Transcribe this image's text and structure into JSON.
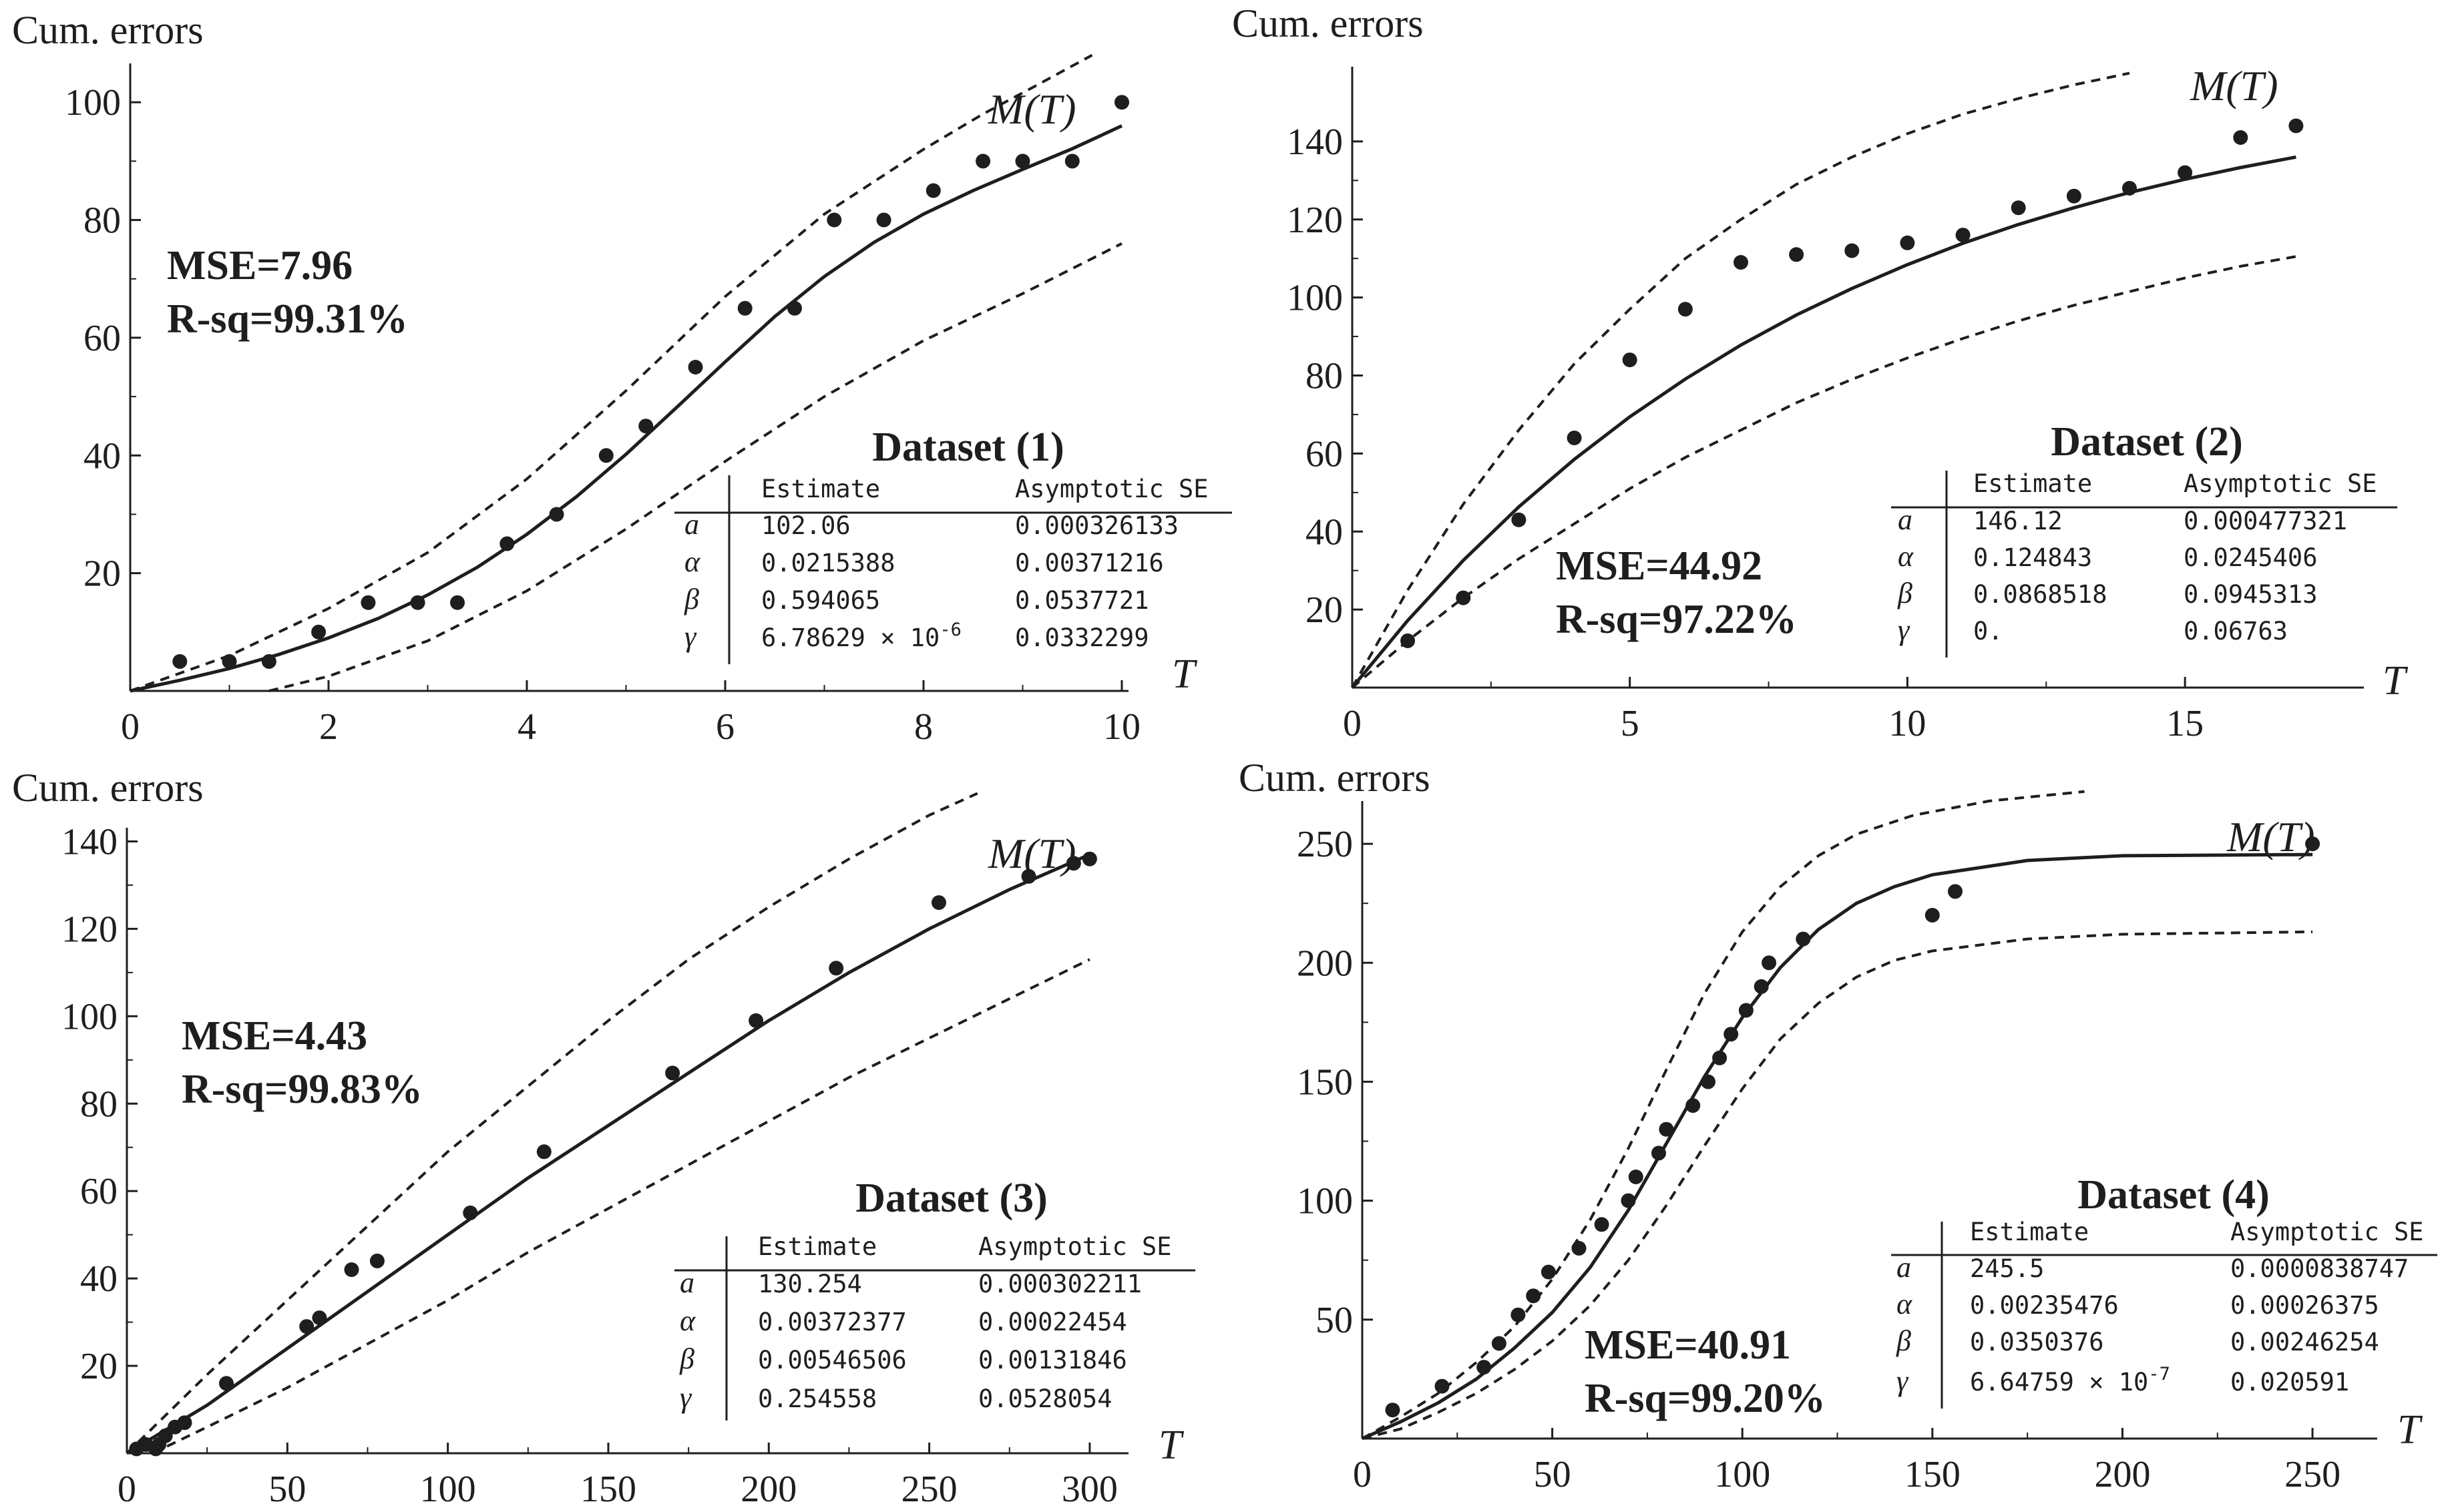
{
  "chart_data": [
    {
      "type": "scatter",
      "ylabel": "Cum. errors",
      "xlabel": "T",
      "curve_label": "M(T)",
      "xlim": [
        0,
        10
      ],
      "ylim": [
        0,
        110
      ],
      "xticks": [
        0,
        2,
        4,
        6,
        8,
        10
      ],
      "yticks": [
        20,
        40,
        60,
        80,
        100
      ],
      "stats": {
        "mse": "MSE=7.96",
        "rsq": "R-sq=99.31%"
      },
      "dataset_title": "Dataset (1)",
      "table": {
        "headers": [
          "Estimate",
          "Asymptotic SE"
        ],
        "rows": [
          {
            "param": "a",
            "estimate": "102.06",
            "se": "0.000326133"
          },
          {
            "param": "α",
            "estimate": "0.0215388",
            "se": "0.00371216"
          },
          {
            "param": "β",
            "estimate": "0.594065",
            "se": "0.0537721"
          },
          {
            "param": "γ",
            "estimate": "6.78629 × 10",
            "exp": "-6",
            "se": "0.0332299"
          }
        ]
      },
      "points": [
        [
          0.5,
          5
        ],
        [
          1.0,
          5
        ],
        [
          1.4,
          5
        ],
        [
          1.9,
          10
        ],
        [
          2.4,
          15
        ],
        [
          2.9,
          15
        ],
        [
          3.3,
          15
        ],
        [
          3.8,
          25
        ],
        [
          4.3,
          30
        ],
        [
          4.8,
          40
        ],
        [
          5.2,
          45
        ],
        [
          5.7,
          55
        ],
        [
          6.2,
          65
        ],
        [
          6.7,
          65
        ],
        [
          7.1,
          80
        ],
        [
          7.6,
          80
        ],
        [
          8.1,
          85
        ],
        [
          8.6,
          90
        ],
        [
          9.0,
          90
        ],
        [
          9.5,
          90
        ],
        [
          10.0,
          100
        ]
      ],
      "fit_curve": [
        [
          0,
          0
        ],
        [
          0.5,
          1.8
        ],
        [
          1,
          3.8
        ],
        [
          1.5,
          6.2
        ],
        [
          2,
          9.0
        ],
        [
          2.5,
          12.3
        ],
        [
          3,
          16.3
        ],
        [
          3.5,
          21.0
        ],
        [
          4,
          26.6
        ],
        [
          4.5,
          33.0
        ],
        [
          5,
          40.2
        ],
        [
          5.5,
          48.0
        ],
        [
          6,
          55.9
        ],
        [
          6.5,
          63.6
        ],
        [
          7,
          70.4
        ],
        [
          7.5,
          76.2
        ],
        [
          8,
          81.0
        ],
        [
          8.5,
          85.0
        ],
        [
          9,
          88.6
        ],
        [
          9.5,
          92.1
        ],
        [
          10,
          96.0
        ]
      ],
      "upper_band": [
        [
          0,
          0
        ],
        [
          1,
          6.0
        ],
        [
          2,
          14.0
        ],
        [
          3,
          23.5
        ],
        [
          4,
          36.0
        ],
        [
          5,
          51.0
        ],
        [
          6,
          67.0
        ],
        [
          7,
          81.0
        ],
        [
          8,
          92.0
        ],
        [
          8.6,
          98.0
        ],
        [
          9.1,
          102.5
        ],
        [
          9.7,
          108.0
        ]
      ],
      "lower_band": [
        [
          1.4,
          0
        ],
        [
          2,
          2.5
        ],
        [
          3,
          8.5
        ],
        [
          4,
          17.0
        ],
        [
          5,
          27.5
        ],
        [
          6,
          39.0
        ],
        [
          7,
          50.0
        ],
        [
          8,
          59.5
        ],
        [
          9,
          67.5
        ],
        [
          10,
          76.0
        ]
      ]
    },
    {
      "type": "scatter",
      "ylabel": "Cum. errors",
      "xlabel": "T",
      "curve_label": "M(T)",
      "xlim": [
        0,
        17.5
      ],
      "ylim": [
        0,
        160
      ],
      "xticks": [
        0,
        5,
        10,
        15
      ],
      "yticks": [
        20,
        40,
        60,
        80,
        100,
        120,
        140
      ],
      "stats": {
        "mse": "MSE=44.92",
        "rsq": "R-sq=97.22%"
      },
      "dataset_title": "Dataset (2)",
      "table": {
        "headers": [
          "Estimate",
          "Asymptotic SE"
        ],
        "rows": [
          {
            "param": "a",
            "estimate": "146.12",
            "se": "0.000477321"
          },
          {
            "param": "α",
            "estimate": "0.124843",
            "se": "0.0245406"
          },
          {
            "param": "β",
            "estimate": "0.0868518",
            "se": "0.0945313"
          },
          {
            "param": "γ",
            "estimate": "0.",
            "se": "0.06763"
          }
        ]
      },
      "points": [
        [
          1,
          12
        ],
        [
          2,
          23
        ],
        [
          3,
          43
        ],
        [
          4,
          64
        ],
        [
          5,
          84
        ],
        [
          6,
          97
        ],
        [
          7,
          109
        ],
        [
          8,
          111
        ],
        [
          9,
          112
        ],
        [
          10,
          114
        ],
        [
          11,
          116
        ],
        [
          12,
          123
        ],
        [
          13,
          126
        ],
        [
          14,
          128
        ],
        [
          15,
          132
        ],
        [
          16,
          141
        ],
        [
          17,
          144
        ]
      ],
      "fit_curve": [
        [
          0,
          0
        ],
        [
          1,
          17.2
        ],
        [
          2,
          32.6
        ],
        [
          3,
          46.3
        ],
        [
          4,
          58.5
        ],
        [
          5,
          69.4
        ],
        [
          6,
          79.1
        ],
        [
          7,
          87.8
        ],
        [
          8,
          95.5
        ],
        [
          9,
          102.3
        ],
        [
          10,
          108.4
        ],
        [
          11,
          113.9
        ],
        [
          12,
          118.7
        ],
        [
          13,
          123.0
        ],
        [
          14,
          126.9
        ],
        [
          15,
          130.3
        ],
        [
          16,
          133.3
        ],
        [
          17,
          136.0
        ]
      ],
      "upper_band": [
        [
          0,
          0
        ],
        [
          1,
          25
        ],
        [
          2,
          47
        ],
        [
          3,
          66
        ],
        [
          4,
          83
        ],
        [
          5,
          97
        ],
        [
          6,
          110
        ],
        [
          7,
          120
        ],
        [
          8,
          129
        ],
        [
          9,
          136
        ],
        [
          10,
          142
        ],
        [
          11,
          147
        ],
        [
          12,
          151
        ],
        [
          13,
          154.5
        ],
        [
          14,
          157.5
        ]
      ],
      "lower_band": [
        [
          0,
          0
        ],
        [
          1,
          12
        ],
        [
          2,
          23
        ],
        [
          3,
          33
        ],
        [
          4,
          42
        ],
        [
          5,
          51
        ],
        [
          6,
          59
        ],
        [
          7,
          66
        ],
        [
          8,
          73
        ],
        [
          9,
          79
        ],
        [
          10,
          84.5
        ],
        [
          11,
          89.5
        ],
        [
          12,
          94
        ],
        [
          13,
          98
        ],
        [
          14,
          101.5
        ],
        [
          15,
          105
        ],
        [
          16,
          108
        ],
        [
          17,
          110.5
        ]
      ]
    },
    {
      "type": "scatter",
      "ylabel": "Cum. errors",
      "xlabel": "T",
      "curve_label": "M(T)",
      "xlim": [
        0,
        310
      ],
      "ylim": [
        0,
        150
      ],
      "xticks": [
        0,
        50,
        100,
        150,
        200,
        250,
        300
      ],
      "yticks": [
        20,
        40,
        60,
        80,
        100,
        120,
        140
      ],
      "stats": {
        "mse": "MSE=4.43",
        "rsq": "R-sq=99.83%"
      },
      "dataset_title": "Dataset (3)",
      "table": {
        "headers": [
          "Estimate",
          "Asymptotic SE"
        ],
        "rows": [
          {
            "param": "a",
            "estimate": "130.254",
            "se": "0.000302211"
          },
          {
            "param": "α",
            "estimate": "0.00372377",
            "se": "0.00022454"
          },
          {
            "param": "β",
            "estimate": "0.00546506",
            "se": "0.00131846"
          },
          {
            "param": "γ",
            "estimate": "0.254558",
            "se": "0.0528054"
          }
        ]
      },
      "points": [
        [
          3,
          1
        ],
        [
          6,
          2
        ],
        [
          9,
          1
        ],
        [
          10,
          2
        ],
        [
          12,
          4
        ],
        [
          15,
          6
        ],
        [
          18,
          7
        ],
        [
          31,
          16
        ],
        [
          56,
          29
        ],
        [
          60,
          31
        ],
        [
          70,
          42
        ],
        [
          78,
          44
        ],
        [
          107,
          55
        ],
        [
          130,
          69
        ],
        [
          170,
          87
        ],
        [
          196,
          99
        ],
        [
          221,
          111
        ],
        [
          253,
          126
        ],
        [
          281,
          132
        ],
        [
          295,
          135
        ],
        [
          300,
          136
        ]
      ],
      "fit_curve": [
        [
          0,
          0
        ],
        [
          25,
          11
        ],
        [
          50,
          24
        ],
        [
          75,
          37
        ],
        [
          100,
          50
        ],
        [
          125,
          63
        ],
        [
          150,
          75
        ],
        [
          175,
          87
        ],
        [
          200,
          99
        ],
        [
          225,
          110
        ],
        [
          250,
          120
        ],
        [
          275,
          129
        ],
        [
          300,
          137
        ]
      ],
      "upper_band": [
        [
          0,
          0
        ],
        [
          25,
          18
        ],
        [
          50,
          35
        ],
        [
          75,
          52
        ],
        [
          100,
          69
        ],
        [
          125,
          84
        ],
        [
          150,
          99
        ],
        [
          175,
          113
        ],
        [
          200,
          125
        ],
        [
          225,
          136
        ],
        [
          250,
          146
        ],
        [
          265,
          151
        ]
      ],
      "lower_band": [
        [
          8,
          0
        ],
        [
          25,
          6
        ],
        [
          50,
          15
        ],
        [
          75,
          25
        ],
        [
          100,
          35
        ],
        [
          125,
          46
        ],
        [
          150,
          56
        ],
        [
          175,
          66
        ],
        [
          200,
          76
        ],
        [
          225,
          86
        ],
        [
          250,
          95
        ],
        [
          275,
          104
        ],
        [
          300,
          113
        ]
      ]
    },
    {
      "type": "scatter",
      "ylabel": "Cum. errors",
      "xlabel": "T",
      "curve_label": "M(T)",
      "xlim": [
        0,
        260
      ],
      "ylim": [
        0,
        275
      ],
      "xticks": [
        0,
        50,
        100,
        150,
        200,
        250
      ],
      "yticks": [
        50,
        100,
        150,
        200,
        250
      ],
      "stats": {
        "mse": "MSE=40.91",
        "rsq": "R-sq=99.20%"
      },
      "dataset_title": "Dataset (4)",
      "table": {
        "headers": [
          "Estimate",
          "Asymptotic SE"
        ],
        "rows": [
          {
            "param": "a",
            "estimate": "245.5",
            "se": "0.0000838747"
          },
          {
            "param": "α",
            "estimate": "0.00235476",
            "se": "0.00026375"
          },
          {
            "param": "β",
            "estimate": "0.0350376",
            "se": "0.00246254"
          },
          {
            "param": "γ",
            "estimate": "6.64759 × 10",
            "exp": "-7",
            "se": "0.020591"
          }
        ]
      },
      "points": [
        [
          8,
          12
        ],
        [
          21,
          22
        ],
        [
          32,
          30
        ],
        [
          36,
          40
        ],
        [
          41,
          52
        ],
        [
          45,
          60
        ],
        [
          49,
          70
        ],
        [
          57,
          80
        ],
        [
          63,
          90
        ],
        [
          70,
          100
        ],
        [
          72,
          110
        ],
        [
          78,
          120
        ],
        [
          80,
          130
        ],
        [
          87,
          140
        ],
        [
          91,
          150
        ],
        [
          94,
          160
        ],
        [
          97,
          170
        ],
        [
          101,
          180
        ],
        [
          105,
          190
        ],
        [
          107,
          200
        ],
        [
          116,
          210
        ],
        [
          150,
          220
        ],
        [
          156,
          230
        ],
        [
          250,
          250
        ]
      ],
      "fit_curve": [
        [
          0,
          0
        ],
        [
          10,
          7
        ],
        [
          20,
          15
        ],
        [
          30,
          25
        ],
        [
          40,
          38
        ],
        [
          50,
          53
        ],
        [
          60,
          72
        ],
        [
          70,
          96
        ],
        [
          80,
          124
        ],
        [
          90,
          152
        ],
        [
          100,
          177
        ],
        [
          110,
          198
        ],
        [
          120,
          214
        ],
        [
          130,
          225
        ],
        [
          140,
          232
        ],
        [
          150,
          237
        ],
        [
          175,
          243
        ],
        [
          200,
          245
        ],
        [
          250,
          245.5
        ]
      ],
      "upper_band": [
        [
          0,
          0
        ],
        [
          10,
          9
        ],
        [
          20,
          19
        ],
        [
          30,
          32
        ],
        [
          40,
          47
        ],
        [
          50,
          67
        ],
        [
          60,
          92
        ],
        [
          70,
          122
        ],
        [
          80,
          155
        ],
        [
          90,
          187
        ],
        [
          100,
          213
        ],
        [
          110,
          232
        ],
        [
          120,
          245
        ],
        [
          130,
          254
        ],
        [
          145,
          262
        ],
        [
          165,
          268
        ],
        [
          190,
          272
        ]
      ],
      "lower_band": [
        [
          0,
          0
        ],
        [
          10,
          4
        ],
        [
          20,
          11
        ],
        [
          30,
          19
        ],
        [
          40,
          29
        ],
        [
          50,
          41
        ],
        [
          60,
          56
        ],
        [
          70,
          75
        ],
        [
          80,
          98
        ],
        [
          90,
          123
        ],
        [
          100,
          147
        ],
        [
          110,
          168
        ],
        [
          120,
          183
        ],
        [
          130,
          194
        ],
        [
          140,
          201
        ],
        [
          150,
          205
        ],
        [
          175,
          210
        ],
        [
          200,
          212
        ],
        [
          250,
          213
        ]
      ]
    }
  ]
}
